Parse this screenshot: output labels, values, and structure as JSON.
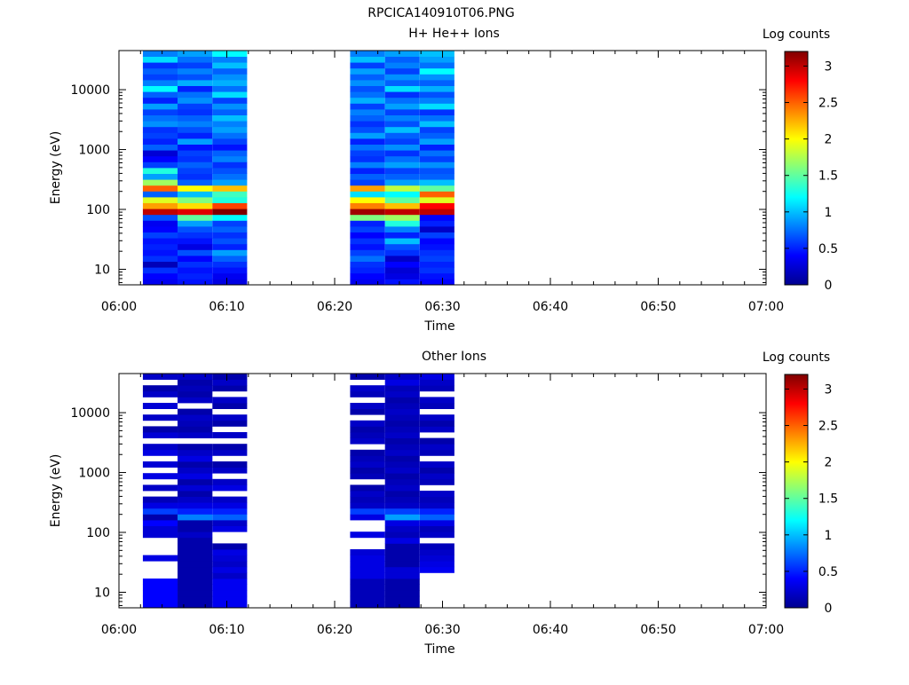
{
  "figure": {
    "title": "RPCICA140910T06.PNG"
  },
  "colormap": [
    "#00008f",
    "#0000ff",
    "#0080ff",
    "#00ffff",
    "#80ff80",
    "#ffff00",
    "#ff8000",
    "#ff0000",
    "#800000"
  ],
  "chart_data": [
    {
      "type": "heatmap",
      "title": "H+ He++ Ions",
      "xlabel": "Time",
      "ylabel": "Energy (eV)",
      "colorbar_label": "Log counts",
      "x_ticks": [
        "06:00",
        "06:10",
        "06:20",
        "06:30",
        "06:40",
        "06:50",
        "07:00"
      ],
      "xlim": [
        "06:00",
        "07:00"
      ],
      "y_ticks": [
        "10",
        "100",
        "1000",
        "10000"
      ],
      "ylim": [
        5.5,
        45000
      ],
      "yscale": "log",
      "color_ticks": [
        "0",
        "0.5",
        "1",
        "1.5",
        "2",
        "2.5",
        "3"
      ],
      "clim": [
        0,
        3.2
      ],
      "columns": [
        {
          "t_start": "06:02:13",
          "t_end": "06:05:26",
          "group": "A",
          "values": [
            0.35,
            0.4,
            0.55,
            0.15,
            0.55,
            0.45,
            0.5,
            0.45,
            0.6,
            0.4,
            0.35,
            0.65,
            3.0,
            2.3,
            1.9,
            0.7,
            2.5,
            1.7,
            0.9,
            1.3,
            0.6,
            0.4,
            0.25,
            0.7,
            0.5,
            0.6,
            0.55,
            0.85,
            0.75,
            0.6,
            0.9,
            0.5,
            0.7,
            1.2,
            0.8,
            0.6,
            0.7,
            0.55,
            1.1,
            0.8
          ]
        },
        {
          "t_start": "06:05:26",
          "t_end": "06:08:40",
          "group": "A",
          "values": [
            0.45,
            0.5,
            0.45,
            0.55,
            0.4,
            0.65,
            0.3,
            0.45,
            0.55,
            0.65,
            0.9,
            1.5,
            2.9,
            2.1,
            1.6,
            1.0,
            2.0,
            0.7,
            0.55,
            0.6,
            0.7,
            0.55,
            0.6,
            0.45,
            0.9,
            0.5,
            0.65,
            0.8,
            0.7,
            0.55,
            0.6,
            0.85,
            0.75,
            0.5,
            0.95,
            0.65,
            0.8,
            0.6,
            0.75,
            0.9
          ]
        },
        {
          "t_start": "06:08:40",
          "t_end": "06:11:53",
          "group": "A",
          "values": [
            0.3,
            0.35,
            0.45,
            0.55,
            0.7,
            0.9,
            0.5,
            0.65,
            0.55,
            0.7,
            0.6,
            1.2,
            3.2,
            2.6,
            1.3,
            1.4,
            2.2,
            0.9,
            0.75,
            0.65,
            0.55,
            0.8,
            0.7,
            0.45,
            0.6,
            0.75,
            0.9,
            0.8,
            1.0,
            0.7,
            0.85,
            0.6,
            1.1,
            0.75,
            0.95,
            0.85,
            0.7,
            1.0,
            0.8,
            1.2
          ]
        },
        {
          "t_start": "06:21:26",
          "t_end": "06:24:40",
          "group": "B",
          "values": [
            0.35,
            0.4,
            0.5,
            0.55,
            0.75,
            0.6,
            0.45,
            0.55,
            0.4,
            0.6,
            0.5,
            1.6,
            3.1,
            2.4,
            2.0,
            1.1,
            2.3,
            0.6,
            0.7,
            0.5,
            0.8,
            0.55,
            0.6,
            0.75,
            0.5,
            0.9,
            0.65,
            0.55,
            0.7,
            0.8,
            0.6,
            0.95,
            0.75,
            0.65,
            0.85,
            0.7,
            0.9,
            0.6,
            1.0,
            0.8
          ]
        },
        {
          "t_start": "06:24:40",
          "t_end": "06:27:53",
          "group": "B",
          "values": [
            0.45,
            0.3,
            0.25,
            0.4,
            0.2,
            0.55,
            0.65,
            1.0,
            0.5,
            0.8,
            1.3,
            1.7,
            3.0,
            2.2,
            1.5,
            1.2,
            1.8,
            0.9,
            0.7,
            0.6,
            0.9,
            0.75,
            0.55,
            0.85,
            0.6,
            0.7,
            1.0,
            0.65,
            0.8,
            0.6,
            0.9,
            0.75,
            0.55,
            1.1,
            0.7,
            0.85,
            0.6,
            0.8,
            0.7,
            0.9
          ]
        },
        {
          "t_start": "06:27:53",
          "t_end": "06:31:06",
          "group": "B",
          "values": [
            0.4,
            0.45,
            0.55,
            0.5,
            0.6,
            0.55,
            0.45,
            0.4,
            0.6,
            0.2,
            0.5,
            0.4,
            3.0,
            2.8,
            1.9,
            2.5,
            1.5,
            1.0,
            0.7,
            0.65,
            0.85,
            0.6,
            0.75,
            0.5,
            0.9,
            0.7,
            0.6,
            1.0,
            0.75,
            0.55,
            1.1,
            0.8,
            0.65,
            0.95,
            0.7,
            0.85,
            1.2,
            0.75,
            0.9,
            1.0
          ]
        }
      ]
    },
    {
      "type": "heatmap",
      "title": "Other Ions",
      "xlabel": "Time",
      "ylabel": "Energy (eV)",
      "colorbar_label": "Log counts",
      "x_ticks": [
        "06:00",
        "06:10",
        "06:20",
        "06:30",
        "06:40",
        "06:50",
        "07:00"
      ],
      "xlim": [
        "06:00",
        "07:00"
      ],
      "y_ticks": [
        "10",
        "100",
        "1000",
        "10000"
      ],
      "ylim": [
        5.5,
        45000
      ],
      "yscale": "log",
      "color_ticks": [
        "0",
        "0.5",
        "1",
        "1.5",
        "2",
        "2.5",
        "3"
      ],
      "clim": [
        0,
        3.2
      ],
      "columns": [
        {
          "t_start": "06:02:13",
          "t_end": "06:05:26",
          "group": "A",
          "values": [
            0.4,
            0.4,
            0.4,
            0.4,
            0.4,
            null,
            null,
            null,
            0.3,
            null,
            null,
            null,
            0.25,
            0.25,
            0.4,
            0.1,
            0.6,
            0.3,
            0.15,
            null,
            0.2,
            null,
            0.3,
            null,
            0.25,
            null,
            0.3,
            0.2,
            null,
            0.25,
            0.1,
            null,
            0.2,
            null,
            0.25,
            null,
            0.2,
            0.1,
            null,
            0.2
          ]
        },
        {
          "t_start": "06:05:26",
          "t_end": "06:08:40",
          "group": "A",
          "values": [
            0.1,
            0.1,
            0.1,
            0.1,
            0.1,
            0.1,
            0.1,
            0.1,
            0.1,
            0.1,
            0.1,
            0.1,
            0.2,
            0.1,
            0.1,
            0.8,
            0.5,
            0.3,
            0.2,
            0.1,
            0.25,
            0.1,
            0.3,
            0.2,
            0.1,
            0.3,
            0.2,
            0.1,
            null,
            0.2,
            0.1,
            0.15,
            0.2,
            0.1,
            null,
            0.2,
            0.1,
            0.15,
            0.1,
            0.2
          ]
        },
        {
          "t_start": "06:08:40",
          "t_end": "06:11:53",
          "group": "A",
          "values": [
            0.35,
            0.35,
            0.35,
            0.35,
            0.35,
            0.2,
            0.3,
            0.2,
            0.25,
            0.3,
            0.1,
            null,
            null,
            0.3,
            0.2,
            0.7,
            0.5,
            0.3,
            0.2,
            null,
            0.3,
            0.2,
            null,
            0.2,
            0.1,
            null,
            0.2,
            0.1,
            null,
            0.2,
            null,
            0.1,
            0.2,
            null,
            0.1,
            0.2,
            null,
            0.1,
            0.2,
            0.1
          ]
        },
        {
          "t_start": "06:21:26",
          "t_end": "06:24:40",
          "group": "B",
          "values": [
            0.15,
            0.15,
            0.15,
            0.15,
            0.15,
            0.3,
            0.3,
            0.3,
            0.3,
            0.25,
            null,
            null,
            0.3,
            null,
            null,
            0.3,
            0.6,
            0.2,
            0.15,
            0.2,
            0.1,
            null,
            0.15,
            0.1,
            0.2,
            0.15,
            0.1,
            null,
            0.2,
            0.15,
            0.1,
            0.2,
            null,
            0.1,
            0.2,
            null,
            0.15,
            0.2,
            null,
            0.1
          ]
        },
        {
          "t_start": "06:24:40",
          "t_end": "06:27:53",
          "group": "B",
          "values": [
            0.1,
            0.1,
            0.1,
            0.1,
            0.1,
            0.25,
            0.25,
            0.1,
            0.1,
            0.1,
            0.1,
            0.3,
            0.15,
            0.2,
            0.3,
            0.9,
            0.6,
            0.2,
            0.15,
            0.1,
            0.2,
            0.15,
            0.1,
            0.2,
            0.15,
            0.1,
            0.2,
            0.15,
            0.1,
            0.2,
            0.15,
            0.1,
            0.15,
            0.2,
            0.15,
            0.1,
            0.2,
            0.15,
            0.3,
            0.2
          ]
        },
        {
          "t_start": "06:27:53",
          "t_end": "06:31:06",
          "group": "B",
          "values": [
            null,
            null,
            null,
            null,
            null,
            null,
            0.35,
            0.3,
            0.25,
            0.2,
            0.15,
            null,
            0.2,
            0.15,
            0.3,
            0.7,
            0.5,
            0.2,
            0.15,
            0.2,
            null,
            0.15,
            0.2,
            0.1,
            0.2,
            null,
            0.15,
            0.2,
            0.1,
            null,
            0.2,
            0.1,
            0.2,
            null,
            0.15,
            0.2,
            null,
            0.15,
            0.2,
            0.3
          ]
        }
      ]
    }
  ]
}
